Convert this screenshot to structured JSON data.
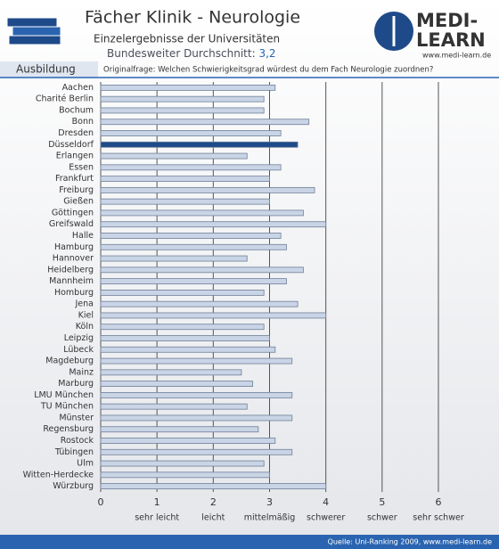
{
  "header": {
    "section": "Ausbildung",
    "logo_top": "MEDI-",
    "logo_bottom": "LEARN",
    "url": "www.medi-learn.de"
  },
  "chart_data": {
    "type": "hbar",
    "title": "Fächer Klinik - Neurologie",
    "subtitle": "Einzelergebnisse der Universitäten",
    "average_label": "Bundesweiter Durchschnitt:",
    "average_value": "3,2",
    "question": "Originalfrage: Welchen Schwierigkeitsgrad würdest du dem Fach Neurologie zuordnen?",
    "source": "Quelle: Uni-Ranking 2009, www.medi-learn.de",
    "categories": [
      "Aachen",
      "Charité Berlin",
      "Bochum",
      "Bonn",
      "Dresden",
      "Düsseldorf",
      "Erlangen",
      "Essen",
      "Frankfurt",
      "Freiburg",
      "Gießen",
      "Göttingen",
      "Greifswald",
      "Halle",
      "Hamburg",
      "Hannover",
      "Heidelberg",
      "Mannheim",
      "Homburg",
      "Jena",
      "Kiel",
      "Köln",
      "Leipzig",
      "Lübeck",
      "Magdeburg",
      "Mainz",
      "Marburg",
      "LMU München",
      "TU München",
      "Münster",
      "Regensburg",
      "Rostock",
      "Tübingen",
      "Ulm",
      "Witten-Herdecke",
      "Würzburg"
    ],
    "values": [
      3.1,
      2.9,
      2.9,
      3.7,
      3.2,
      3.5,
      2.6,
      3.2,
      3.0,
      3.8,
      3.0,
      3.6,
      4.0,
      3.2,
      3.3,
      2.6,
      3.6,
      3.3,
      2.9,
      3.5,
      4.0,
      2.9,
      3.0,
      3.1,
      3.4,
      2.5,
      2.7,
      3.4,
      2.6,
      3.4,
      2.8,
      3.1,
      3.4,
      2.9,
      3.0,
      4.0
    ],
    "colors": [
      "#c9d5e6",
      "#c9d5e6",
      "#c9d5e6",
      "#c9d5e6",
      "#c9d5e6",
      "#1e4a8a",
      "#c9d5e6",
      "#c9d5e6",
      "#c9d5e6",
      "#c9d5e6",
      "#c9d5e6",
      "#c9d5e6",
      "#c9d5e6",
      "#c9d5e6",
      "#c9d5e6",
      "#c9d5e6",
      "#c9d5e6",
      "#c9d5e6",
      "#c9d5e6",
      "#c9d5e6",
      "#c9d5e6",
      "#c9d5e6",
      "#c9d5e6",
      "#c9d5e6",
      "#c9d5e6",
      "#c9d5e6",
      "#c9d5e6",
      "#c9d5e6",
      "#c9d5e6",
      "#c9d5e6",
      "#c9d5e6",
      "#c9d5e6",
      "#c9d5e6",
      "#c9d5e6",
      "#c9d5e6",
      "#c9d5e6"
    ],
    "xlim": [
      0,
      6
    ],
    "xticks": [
      0,
      1,
      2,
      3,
      4,
      5,
      6
    ],
    "scale_labels": [
      {
        "value": 1,
        "label": "sehr leicht"
      },
      {
        "value": 2,
        "label": "leicht"
      },
      {
        "value": 3,
        "label": "mittelmäßig"
      },
      {
        "value": 4,
        "label": "schwerer"
      },
      {
        "value": 5,
        "label": "schwer"
      },
      {
        "value": 6,
        "label": "sehr schwer"
      }
    ],
    "grid": true
  }
}
